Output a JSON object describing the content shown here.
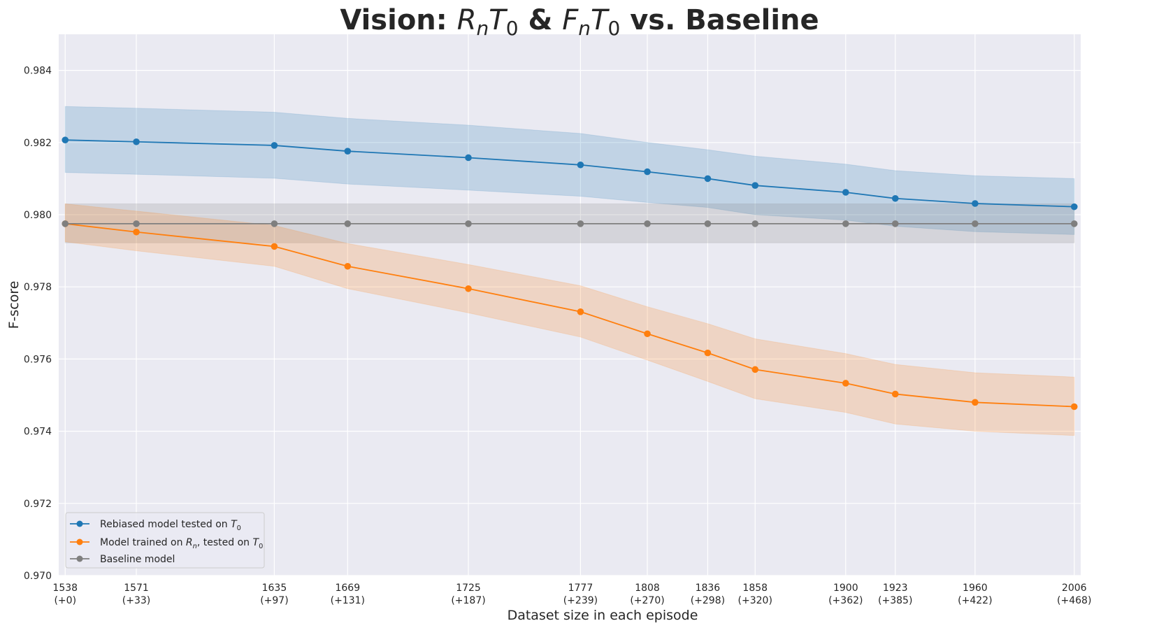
{
  "chart_data": {
    "type": "line",
    "title": {
      "prefix": "Vision: ",
      "a_base": "R",
      "a_sub1": "n",
      "a_base2": "T",
      "a_sub2": "0",
      "amp": " & ",
      "b_base": "F",
      "b_sub1": "n",
      "b_base2": "T",
      "b_sub2": "0",
      "suffix": " vs. Baseline"
    },
    "xlabel": "Dataset size in each episode",
    "ylabel": "F-score",
    "ylim": [
      0.97,
      0.985
    ],
    "grid": true,
    "x": [
      1538,
      1571,
      1635,
      1669,
      1725,
      1777,
      1808,
      1836,
      1858,
      1900,
      1923,
      1960,
      2006
    ],
    "x_tick_labels": [
      "1538",
      "1571",
      "1635",
      "1669",
      "1725",
      "1777",
      "1808",
      "1836",
      "1858",
      "1900",
      "1923",
      "1960",
      "2006"
    ],
    "x_tick_sublabels": [
      "(+0)",
      "(+33)",
      "(+97)",
      "(+131)",
      "(+187)",
      "(+239)",
      "(+270)",
      "(+298)",
      "(+320)",
      "(+362)",
      "(+385)",
      "(+422)",
      "(+468)"
    ],
    "y_ticks": [
      0.97,
      0.972,
      0.974,
      0.976,
      0.978,
      0.98,
      0.982,
      0.984
    ],
    "y_tick_labels": [
      "0.970",
      "0.972",
      "0.974",
      "0.976",
      "0.978",
      "0.980",
      "0.982",
      "0.984"
    ],
    "series": [
      {
        "name": "Rebiased model tested on T0",
        "legend": {
          "text": "Rebiased model tested on ",
          "sym": "T",
          "sub": "0",
          "tail": ""
        },
        "color": "#1f77b4",
        "values": [
          0.98207,
          0.98202,
          0.98192,
          0.98176,
          0.98158,
          0.98138,
          0.98119,
          0.981,
          0.98081,
          0.98062,
          0.98045,
          0.98031,
          0.98022
        ],
        "upper": [
          0.983,
          0.98295,
          0.98284,
          0.98267,
          0.98248,
          0.98225,
          0.982,
          0.9818,
          0.98162,
          0.9814,
          0.98122,
          0.98108,
          0.981
        ],
        "lower": [
          0.98117,
          0.98112,
          0.98101,
          0.98085,
          0.98068,
          0.98051,
          0.98034,
          0.9802,
          0.98,
          0.97985,
          0.97968,
          0.97953,
          0.97945
        ]
      },
      {
        "name": "Model trained on Rn, tested on T0",
        "legend": {
          "text": "Model trained on ",
          "sym": "R",
          "sub": "n",
          "mid": ", tested on ",
          "sym2": "T",
          "sub2": "0"
        },
        "color": "#ff7f0e",
        "values": [
          0.97975,
          0.97952,
          0.97912,
          0.97857,
          0.97795,
          0.97731,
          0.9767,
          0.97617,
          0.97571,
          0.97533,
          0.97503,
          0.9748,
          0.97468
        ],
        "upper": [
          0.9803,
          0.9801,
          0.9797,
          0.9792,
          0.97862,
          0.97803,
          0.97745,
          0.97698,
          0.97656,
          0.97615,
          0.97585,
          0.97562,
          0.9755
        ],
        "lower": [
          0.97925,
          0.979,
          0.97857,
          0.97795,
          0.97728,
          0.97661,
          0.97597,
          0.97538,
          0.9749,
          0.97452,
          0.9742,
          0.974,
          0.97388
        ]
      },
      {
        "name": "Baseline model",
        "legend": {
          "text": "Baseline model"
        },
        "color": "#7f7f7f",
        "values": [
          0.97975,
          0.97975,
          0.97975,
          0.97975,
          0.97975,
          0.97975,
          0.97975,
          0.97975,
          0.97975,
          0.97975,
          0.97975,
          0.97975,
          0.97975
        ],
        "upper": [
          0.9803,
          0.9803,
          0.9803,
          0.9803,
          0.9803,
          0.9803,
          0.9803,
          0.9803,
          0.9803,
          0.9803,
          0.9803,
          0.9803,
          0.9803
        ],
        "lower": [
          0.97922,
          0.97922,
          0.97922,
          0.97922,
          0.97922,
          0.97922,
          0.97922,
          0.97922,
          0.97922,
          0.97922,
          0.97922,
          0.97922,
          0.97922
        ]
      }
    ],
    "legend_position": "lower-left",
    "colors": {
      "background": "#eaeaf2",
      "grid": "#ffffff",
      "text": "#262626"
    }
  }
}
